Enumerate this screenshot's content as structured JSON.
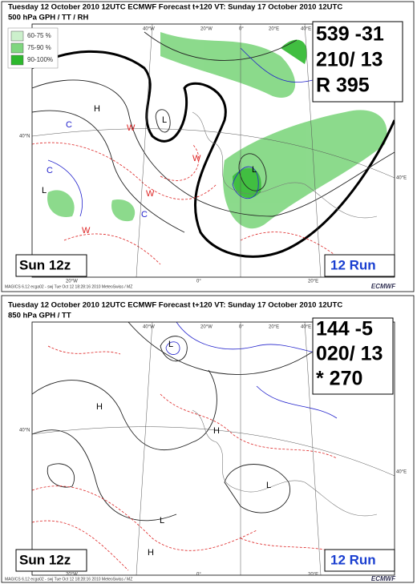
{
  "panels": [
    {
      "header": "Tuesday 12 October 2010 12UTC ECMWF  Forecast t+120 VT: Sunday 17 October 2010 12UTC",
      "subtitle": "500 hPa GPH / TT / RH",
      "legend": [
        "60-75 %",
        "75-90 %",
        "90-100%"
      ],
      "box_lines": [
        "539 -31",
        "210/ 13",
        "R 395"
      ],
      "left_label": "Sun 12z",
      "right_label": "12 Run",
      "top_lon": [
        "40°W",
        "20°W",
        "0°",
        "20°E",
        "40°E"
      ],
      "bottom_lon": [
        "20°W",
        "0°",
        "20°E"
      ],
      "side_lat": [
        "40°N",
        "40°E"
      ],
      "map_labels": [
        "H",
        "L",
        "L",
        "L",
        "C",
        "C",
        "C",
        "W",
        "W",
        "W",
        "W"
      ],
      "footer": "MAGICS 6.12 ecga02 - swj Tue Oct 12 18:28:16 2010 MeteoSwiss / MZ",
      "logo": "ECMWF"
    },
    {
      "header": "Tuesday 12 October 2010 12UTC ECMWF  Forecast t+120 VT: Sunday 17 October 2010 12UTC",
      "subtitle": "850 hPa GPH / TT",
      "box_lines": [
        "144  -5",
        "020/ 13",
        "*  270"
      ],
      "left_label": "Sun 12z",
      "right_label": "12 Run",
      "top_lon": [
        "40°W",
        "20°W",
        "0°",
        "20°E",
        "40°E"
      ],
      "bottom_lon": [
        "20°W",
        "0°",
        "20°E"
      ],
      "side_lat": [
        "40°N",
        "40°E"
      ],
      "map_labels": [
        "H",
        "H",
        "H",
        "L",
        "L",
        "L"
      ],
      "footer": "MAGICS 6.12 ecga02 - swj Tue Oct 12 18:28:16 2010 MeteoSwiss / MZ",
      "logo": "ECMWF"
    }
  ]
}
